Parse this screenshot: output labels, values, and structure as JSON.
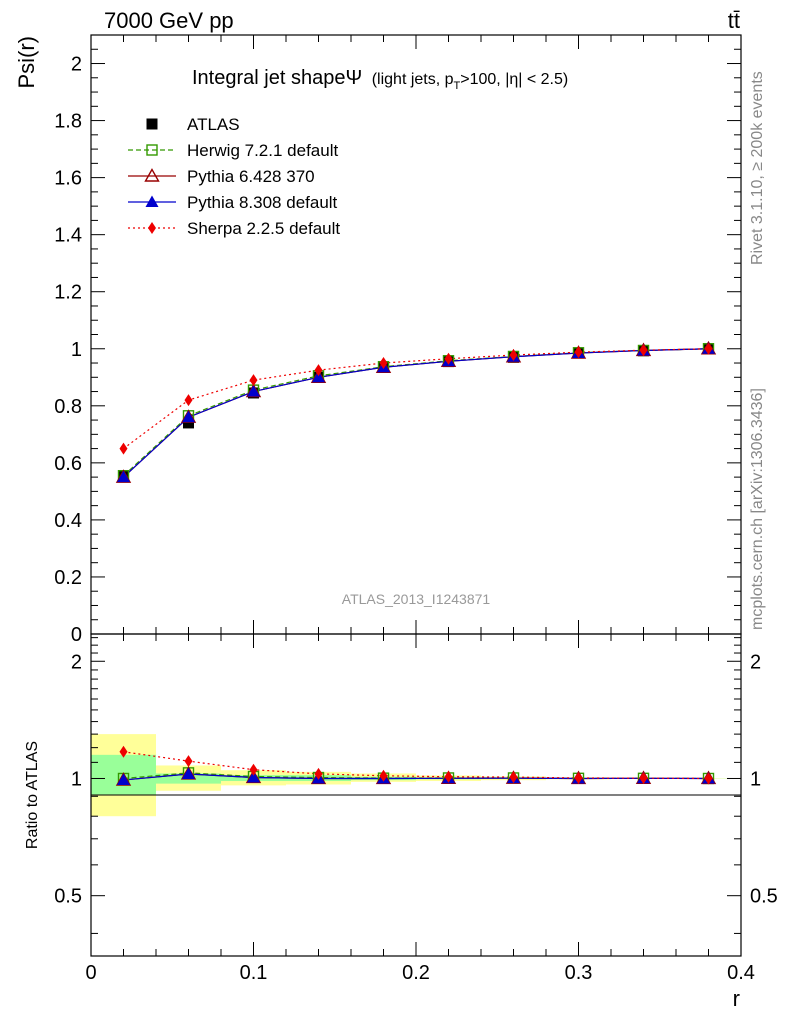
{
  "header": {
    "left": "7000 GeV pp",
    "right": "tt̄"
  },
  "side_text": {
    "rivet": "Rivet 3.1.10, ≥ 200k events",
    "mcplots": "mcplots.cern.ch [arXiv:1306.3436]"
  },
  "chart_data": {
    "type": "line",
    "title": "Integral jet shapeΨ",
    "title_suffix": "(light jets, p",
    "title_sub": "T",
    "title_tail": ">100, |η| < 2.5)",
    "watermark": "ATLAS_2013_I1243871",
    "xlabel": "r",
    "ylabel": "Psi(r)",
    "ratio_ylabel": "Ratio to ATLAS",
    "xlim": [
      0,
      0.4
    ],
    "ylim": [
      0,
      2.1
    ],
    "ratio_ylim": [
      0.35,
      2.35
    ],
    "x_ticks": [
      "0",
      "0.1",
      "0.2",
      "0.3",
      "0.4"
    ],
    "y_ticks": [
      "0.2",
      "0.4",
      "0.6",
      "0.8",
      "1",
      "1.2",
      "1.4",
      "1.6",
      "1.8",
      "2"
    ],
    "y_zero_label": "0",
    "ratio_y_ticks": [
      "0.5",
      "1",
      "2"
    ],
    "x": [
      0.02,
      0.06,
      0.1,
      0.14,
      0.18,
      0.22,
      0.26,
      0.3,
      0.34,
      0.38
    ],
    "bin_edges": [
      0,
      0.04,
      0.08,
      0.12,
      0.16,
      0.2,
      0.24,
      0.28,
      0.32,
      0.36,
      0.4
    ],
    "data": {
      "name": "ATLAS",
      "values": [
        0.555,
        0.74,
        0.845,
        0.9,
        0.935,
        0.955,
        0.97,
        0.985,
        0.993,
        1.0
      ],
      "green_band": [
        [
          0.91,
          1.15
        ],
        [
          0.97,
          1.03
        ],
        [
          0.985,
          1.02
        ],
        [
          0.985,
          1.02
        ],
        [
          0.99,
          1.01
        ],
        [
          0.995,
          1.006
        ],
        [
          0.997,
          1.004
        ],
        [
          0.998,
          1.002
        ],
        [
          0.999,
          1.001
        ],
        [
          0.9995,
          1.0005
        ]
      ],
      "yellow_band": [
        [
          0.8,
          1.3
        ],
        [
          0.93,
          1.08
        ],
        [
          0.96,
          1.05
        ],
        [
          0.965,
          1.04
        ],
        [
          0.98,
          1.03
        ],
        [
          0.985,
          1.018
        ],
        [
          0.99,
          1.012
        ],
        [
          0.995,
          1.005
        ],
        [
          0.997,
          1.003
        ],
        [
          0.999,
          1.001
        ]
      ]
    },
    "series": [
      {
        "name": "Herwig 7.2.1 default",
        "color": "#339900",
        "marker": "open-square",
        "dash": "dashed",
        "values": [
          0.555,
          0.765,
          0.855,
          0.905,
          0.937,
          0.958,
          0.973,
          0.986,
          0.994,
          1.0
        ]
      },
      {
        "name": "Pythia 6.428 370",
        "color": "#990000",
        "marker": "open-triangle",
        "dash": "solid",
        "values": [
          0.55,
          0.76,
          0.85,
          0.9,
          0.935,
          0.956,
          0.972,
          0.985,
          0.994,
          1.0
        ]
      },
      {
        "name": "Pythia 8.308 default",
        "color": "#0000cc",
        "marker": "filled-triangle",
        "dash": "solid",
        "values": [
          0.55,
          0.76,
          0.85,
          0.9,
          0.935,
          0.956,
          0.972,
          0.985,
          0.994,
          1.0
        ]
      },
      {
        "name": "Sherpa 2.2.5 default",
        "color": "#ee0000",
        "marker": "filled-diamond",
        "dash": "dotted",
        "values": [
          0.65,
          0.82,
          0.89,
          0.925,
          0.95,
          0.965,
          0.978,
          0.988,
          0.995,
          1.0
        ]
      }
    ]
  }
}
